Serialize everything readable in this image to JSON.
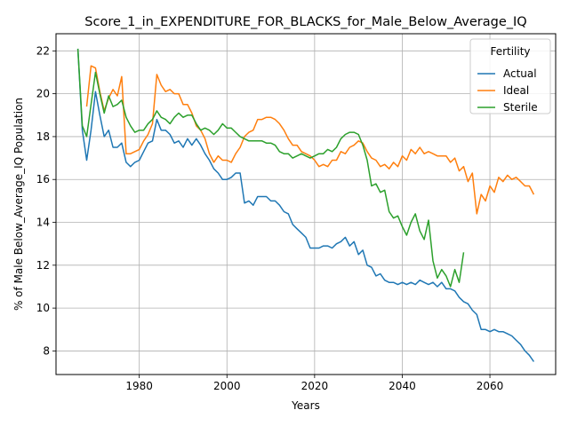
{
  "chart_data": {
    "type": "line",
    "title": "Score_1_in_EXPENDITURE_FOR_BLACKS_for_Male_Below_Average_IQ",
    "xlabel": "Years",
    "ylabel": "% of Male Below_Average_IQ Population",
    "xlim": [
      1961,
      2075
    ],
    "ylim": [
      6.9,
      22.8
    ],
    "x_ticks": [
      1980,
      2000,
      2020,
      2040,
      2060
    ],
    "y_ticks": [
      8,
      10,
      12,
      14,
      16,
      18,
      20,
      22
    ],
    "grid": true,
    "legend": {
      "title": "Fertility",
      "position": "top-right"
    },
    "series": [
      {
        "name": "Actual",
        "color": "#1f77b4",
        "x": [
          1966,
          1967,
          1968,
          1969,
          1970,
          1971,
          1972,
          1973,
          1974,
          1975,
          1976,
          1977,
          1978,
          1979,
          1980,
          1981,
          1982,
          1983,
          1984,
          1985,
          1986,
          1987,
          1988,
          1989,
          1990,
          1991,
          1992,
          1993,
          1994,
          1995,
          1996,
          1997,
          1998,
          1999,
          2000,
          2001,
          2002,
          2003,
          2004,
          2005,
          2006,
          2007,
          2008,
          2009,
          2010,
          2011,
          2012,
          2013,
          2014,
          2015,
          2016,
          2017,
          2018,
          2019,
          2020,
          2021,
          2022,
          2023,
          2024,
          2025,
          2026,
          2027,
          2028,
          2029,
          2030,
          2031,
          2032,
          2033,
          2034,
          2035,
          2036,
          2037,
          2038,
          2039,
          2040,
          2041,
          2042,
          2043,
          2044,
          2045,
          2046,
          2047,
          2048,
          2049,
          2050,
          2051,
          2052,
          2053,
          2054,
          2055,
          2056,
          2057,
          2058,
          2059,
          2060,
          2061,
          2062,
          2063,
          2064,
          2065,
          2066,
          2067,
          2068,
          2069,
          2070
        ],
        "values": [
          22.1,
          18.3,
          16.9,
          18.3,
          20.1,
          19.0,
          18.0,
          18.3,
          17.5,
          17.5,
          17.7,
          16.8,
          16.6,
          16.8,
          16.9,
          17.3,
          17.7,
          17.8,
          18.8,
          18.3,
          18.3,
          18.1,
          17.7,
          17.8,
          17.5,
          17.9,
          17.6,
          17.9,
          17.6,
          17.2,
          16.9,
          16.5,
          16.3,
          16.0,
          16.0,
          16.1,
          16.3,
          16.3,
          14.9,
          15.0,
          14.8,
          15.2,
          15.2,
          15.2,
          15.0,
          15.0,
          14.8,
          14.5,
          14.4,
          13.9,
          13.7,
          13.5,
          13.3,
          12.8,
          12.8,
          12.8,
          12.9,
          12.9,
          12.8,
          13.0,
          13.1,
          13.3,
          12.9,
          13.1,
          12.5,
          12.7,
          12.0,
          11.9,
          11.5,
          11.6,
          11.3,
          11.2,
          11.2,
          11.1,
          11.2,
          11.1,
          11.2,
          11.1,
          11.3,
          11.2,
          11.1,
          11.2,
          11.0,
          11.2,
          10.9,
          10.9,
          10.8,
          10.5,
          10.3,
          10.2,
          9.9,
          9.7,
          9.0,
          9.0,
          8.9,
          9.0,
          8.9,
          8.9,
          8.8,
          8.7,
          8.5,
          8.3,
          8.0,
          7.8,
          7.5
        ]
      },
      {
        "name": "Ideal",
        "color": "#ff7f0e",
        "x": [
          1968,
          1969,
          1970,
          1971,
          1972,
          1973,
          1974,
          1975,
          1976,
          1977,
          1978,
          1979,
          1980,
          1981,
          1982,
          1983,
          1984,
          1985,
          1986,
          1987,
          1988,
          1989,
          1990,
          1991,
          1992,
          1993,
          1994,
          1995,
          1996,
          1997,
          1998,
          1999,
          2000,
          2001,
          2002,
          2003,
          2004,
          2005,
          2006,
          2007,
          2008,
          2009,
          2010,
          2011,
          2012,
          2013,
          2014,
          2015,
          2016,
          2017,
          2018,
          2019,
          2020,
          2021,
          2022,
          2023,
          2024,
          2025,
          2026,
          2027,
          2028,
          2029,
          2030,
          2031,
          2032,
          2033,
          2034,
          2035,
          2036,
          2037,
          2038,
          2039,
          2040,
          2041,
          2042,
          2043,
          2044,
          2045,
          2046,
          2047,
          2048,
          2049,
          2050,
          2051,
          2052,
          2053,
          2054,
          2055,
          2056,
          2057,
          2058,
          2059,
          2060,
          2061,
          2062,
          2063,
          2064,
          2065,
          2066,
          2067,
          2068,
          2069,
          2070
        ],
        "values": [
          19.4,
          21.3,
          21.2,
          20.1,
          19.2,
          19.8,
          20.2,
          19.9,
          20.8,
          17.2,
          17.2,
          17.3,
          17.4,
          17.8,
          18.1,
          18.6,
          20.9,
          20.4,
          20.1,
          20.2,
          20.0,
          20.0,
          19.5,
          19.5,
          19.1,
          18.5,
          18.3,
          17.9,
          17.2,
          16.8,
          17.1,
          16.9,
          16.9,
          16.8,
          17.2,
          17.5,
          18.0,
          18.2,
          18.3,
          18.8,
          18.8,
          18.9,
          18.9,
          18.8,
          18.6,
          18.3,
          17.9,
          17.6,
          17.6,
          17.3,
          17.2,
          17.1,
          16.9,
          16.6,
          16.7,
          16.6,
          16.9,
          16.9,
          17.3,
          17.2,
          17.5,
          17.6,
          17.8,
          17.7,
          17.3,
          17.0,
          16.9,
          16.6,
          16.7,
          16.5,
          16.8,
          16.6,
          17.1,
          16.9,
          17.4,
          17.2,
          17.5,
          17.2,
          17.3,
          17.2,
          17.1,
          17.1,
          17.1,
          16.8,
          17.0,
          16.4,
          16.6,
          15.9,
          16.3,
          14.4,
          15.3,
          15.0,
          15.7,
          15.4,
          16.1,
          15.9,
          16.2,
          16.0,
          16.1,
          15.9,
          15.7,
          15.7,
          15.3
        ]
      },
      {
        "name": "Sterile",
        "color": "#2ca02c",
        "x": [
          1966,
          1967,
          1968,
          1969,
          1970,
          1971,
          1972,
          1973,
          1974,
          1975,
          1976,
          1977,
          1978,
          1979,
          1980,
          1981,
          1982,
          1983,
          1984,
          1985,
          1986,
          1987,
          1988,
          1989,
          1990,
          1991,
          1992,
          1993,
          1994,
          1995,
          1996,
          1997,
          1998,
          1999,
          2000,
          2001,
          2002,
          2003,
          2004,
          2005,
          2006,
          2007,
          2008,
          2009,
          2010,
          2011,
          2012,
          2013,
          2014,
          2015,
          2016,
          2017,
          2018,
          2019,
          2020,
          2021,
          2022,
          2023,
          2024,
          2025,
          2026,
          2027,
          2028,
          2029,
          2030,
          2031,
          2032,
          2033,
          2034,
          2035,
          2036,
          2037,
          2038,
          2039,
          2040,
          2041,
          2042,
          2043,
          2044,
          2045,
          2046,
          2047,
          2048,
          2049,
          2050,
          2051,
          2052,
          2053,
          2054
        ],
        "values": [
          22.1,
          18.5,
          18.0,
          19.5,
          21.0,
          20.0,
          19.1,
          19.9,
          19.4,
          19.5,
          19.7,
          18.9,
          18.5,
          18.2,
          18.3,
          18.3,
          18.6,
          18.8,
          19.2,
          18.9,
          18.8,
          18.6,
          18.9,
          19.1,
          18.9,
          19.0,
          19.0,
          18.6,
          18.3,
          18.4,
          18.3,
          18.1,
          18.3,
          18.6,
          18.4,
          18.4,
          18.2,
          18.0,
          17.9,
          17.8,
          17.8,
          17.8,
          17.8,
          17.7,
          17.7,
          17.6,
          17.3,
          17.2,
          17.2,
          17.0,
          17.1,
          17.2,
          17.1,
          17.0,
          17.1,
          17.2,
          17.2,
          17.4,
          17.3,
          17.5,
          17.9,
          18.1,
          18.2,
          18.2,
          18.1,
          17.6,
          16.9,
          15.7,
          15.8,
          15.4,
          15.5,
          14.5,
          14.2,
          14.3,
          13.8,
          13.4,
          14.0,
          14.4,
          13.6,
          13.2,
          14.1,
          12.2,
          11.4,
          11.8,
          11.5,
          11.0,
          11.8,
          11.2,
          12.6
        ]
      }
    ]
  }
}
